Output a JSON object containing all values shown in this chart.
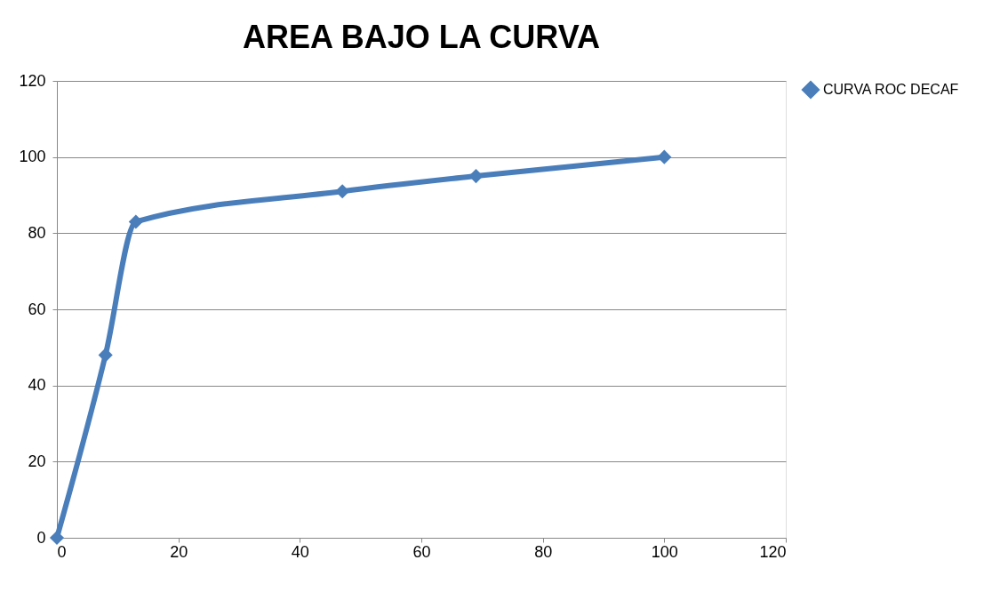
{
  "chart_data": {
    "type": "line",
    "title": "AREA BAJO LA CURVA",
    "x": [
      0,
      8,
      13,
      47,
      69,
      100
    ],
    "series": [
      {
        "name": "CURVA ROC DECAF",
        "color": "#4a7ebb",
        "values": [
          0,
          48,
          83,
          91,
          95,
          100
        ]
      }
    ],
    "xlim": [
      0,
      120
    ],
    "xticks": [
      0,
      20,
      40,
      60,
      80,
      100,
      120
    ],
    "ylim": [
      0,
      120
    ],
    "yticks": [
      0,
      20,
      40,
      60,
      80,
      100,
      120
    ],
    "grid": "y",
    "legend": "right",
    "marker": "diamond",
    "line_style": "solid"
  }
}
